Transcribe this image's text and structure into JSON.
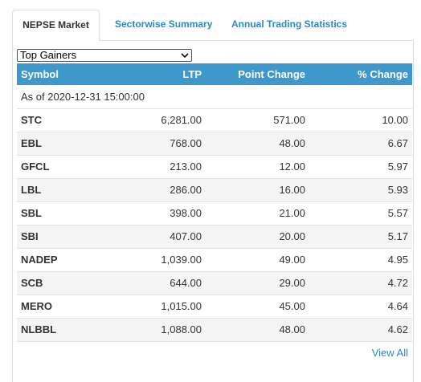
{
  "tabs": [
    {
      "label": "NEPSE Market",
      "active": true
    },
    {
      "label": "Sectorwise Summary",
      "active": false
    },
    {
      "label": "Annual Trading Statistics",
      "active": false
    }
  ],
  "filter": {
    "selected": "Top Gainers"
  },
  "table": {
    "columns": [
      "Symbol",
      "LTP",
      "Point Change",
      "% Change"
    ],
    "as_of": "As of 2020-12-31 15:00:00",
    "rows": [
      {
        "symbol": "STC",
        "ltp": "6,281.00",
        "point_change": "571.00",
        "pct_change": "10.00"
      },
      {
        "symbol": "EBL",
        "ltp": "768.00",
        "point_change": "48.00",
        "pct_change": "6.67"
      },
      {
        "symbol": "GFCL",
        "ltp": "213.00",
        "point_change": "12.00",
        "pct_change": "5.97"
      },
      {
        "symbol": "LBL",
        "ltp": "286.00",
        "point_change": "16.00",
        "pct_change": "5.93"
      },
      {
        "symbol": "SBL",
        "ltp": "398.00",
        "point_change": "21.00",
        "pct_change": "5.57"
      },
      {
        "symbol": "SBI",
        "ltp": "407.00",
        "point_change": "20.00",
        "pct_change": "5.17"
      },
      {
        "symbol": "NADEP",
        "ltp": "1,039.00",
        "point_change": "49.00",
        "pct_change": "4.95"
      },
      {
        "symbol": "SCB",
        "ltp": "644.00",
        "point_change": "29.00",
        "pct_change": "4.72"
      },
      {
        "symbol": "MERO",
        "ltp": "1,015.00",
        "point_change": "45.00",
        "pct_change": "4.64"
      },
      {
        "symbol": "NLBBL",
        "ltp": "1,088.00",
        "point_change": "48.00",
        "pct_change": "4.62"
      }
    ]
  },
  "view_all_label": "View All",
  "colors": {
    "header_bg": "#3e98cc",
    "link": "#2a8ac3",
    "row_alt": "#f5f5f5"
  }
}
